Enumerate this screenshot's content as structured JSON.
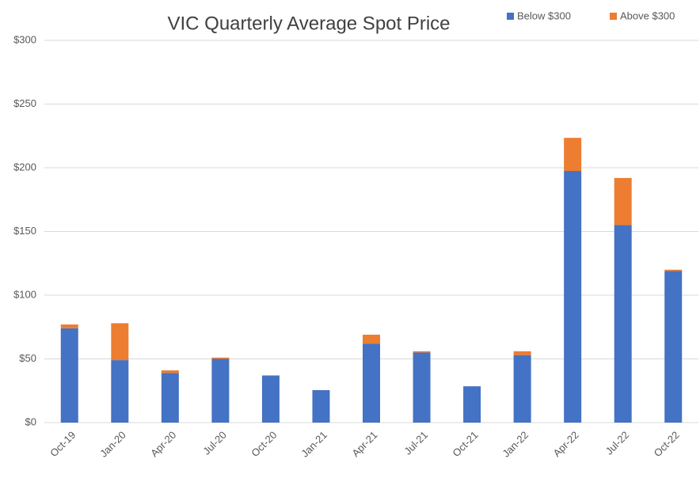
{
  "chart_data": {
    "type": "stacked_bar",
    "title": "VIC Quarterly Average Spot Price",
    "categories": [
      "Oct-19",
      "Jan-20",
      "Apr-20",
      "Jul-20",
      "Oct-20",
      "Jan-21",
      "Apr-21",
      "Jul-21",
      "Oct-21",
      "Jan-22",
      "Apr-22",
      "Jul-22",
      "Oct-22"
    ],
    "series": [
      {
        "name": "Below $300",
        "color": "#4472c4",
        "values": [
          74,
          49,
          39,
          50,
          37,
          25.5,
          62,
          55,
          28.5,
          53,
          197.5,
          155,
          119
        ]
      },
      {
        "name": "Above $300",
        "color": "#ed7d31",
        "values": [
          3,
          29,
          2,
          1,
          0,
          0,
          7,
          1,
          0,
          3,
          26,
          37,
          1
        ]
      }
    ],
    "ylim": [
      0,
      300
    ],
    "yticks": [
      {
        "value": 0,
        "label": "$0"
      },
      {
        "value": 50,
        "label": "$50"
      },
      {
        "value": 100,
        "label": "$100"
      },
      {
        "value": 150,
        "label": "$150"
      },
      {
        "value": 200,
        "label": "$200"
      },
      {
        "value": 250,
        "label": "$250"
      },
      {
        "value": 300,
        "label": "$300"
      }
    ],
    "grid": true,
    "legend": "top-right"
  }
}
